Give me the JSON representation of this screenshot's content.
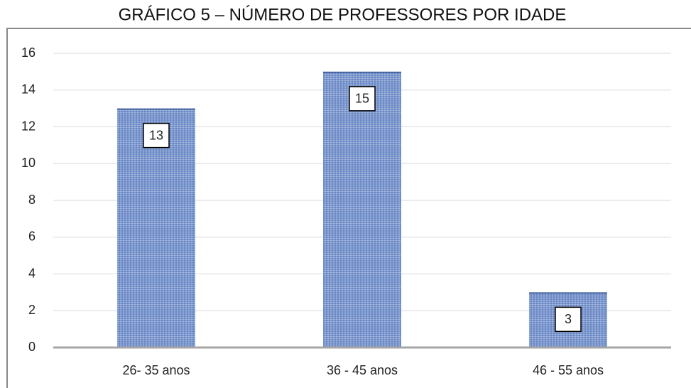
{
  "chart_data": {
    "type": "bar",
    "title": "GRÁFICO 5 – NÚMERO DE PROFESSORES POR IDADE",
    "categories": [
      "26- 35 anos",
      "36 - 45 anos",
      "46 - 55 anos"
    ],
    "values": [
      13,
      15,
      3
    ],
    "color": "#6f8fcb",
    "ylim": [
      0,
      16
    ],
    "yticks": [
      0,
      2,
      4,
      6,
      8,
      10,
      12,
      14,
      16
    ],
    "grid": true
  }
}
